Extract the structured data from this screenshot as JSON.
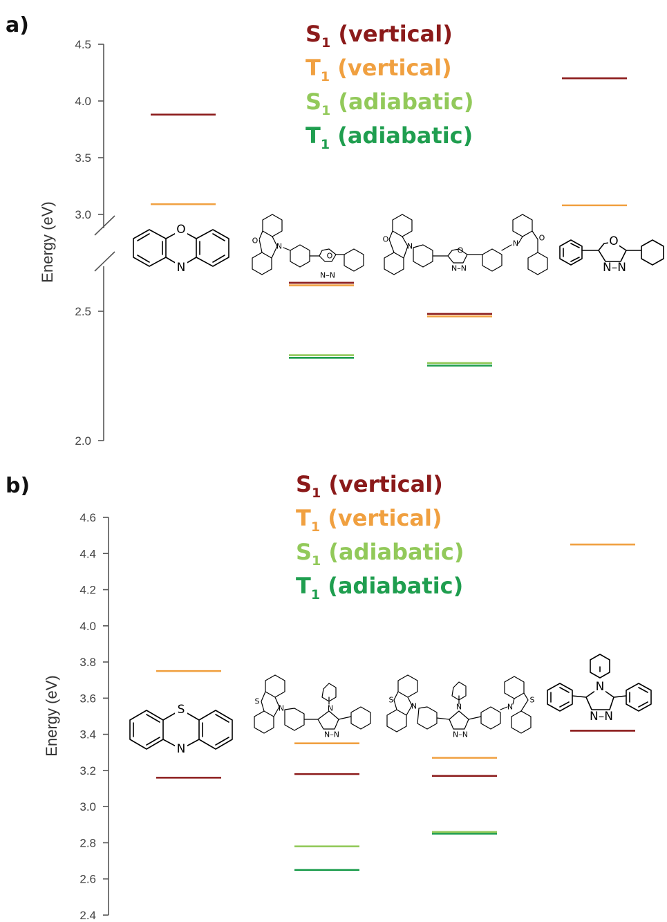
{
  "chart_data": [
    {
      "panel": "a)",
      "type": "energy-level",
      "ylabel": "Energy (eV)",
      "yticks": [
        "4.5",
        "4.0",
        "3.5",
        "3.0",
        "2.5",
        "2.0"
      ],
      "ylim": [
        2.0,
        4.5
      ],
      "axis_break": [
        2.75,
        2.95
      ],
      "legend": [
        {
          "state": "S",
          "sub": "1",
          "label": " (vertical)",
          "color": "#8b1a1a"
        },
        {
          "state": "T",
          "sub": "1",
          "label": " (vertical)",
          "color": "#f0a040"
        },
        {
          "state": "S",
          "sub": "1",
          "label": " (adiabatic)",
          "color": "#92c95a"
        },
        {
          "state": "T",
          "sub": "1",
          "label": " (adiabatic)",
          "color": "#1f9e4f"
        }
      ],
      "categories": [
        "phenoxazine",
        "phenoxazine-phenyl-oxadiazole-phenyl",
        "bis(phenoxazine-phenyl)-oxadiazole",
        "diphenyl-oxadiazole"
      ],
      "series": [
        {
          "name": "S1 (vertical)",
          "color": "#8b1a1a",
          "values": [
            3.88,
            2.61,
            2.49,
            4.2
          ]
        },
        {
          "name": "T1 (vertical)",
          "color": "#f0a040",
          "values": [
            3.09,
            2.6,
            2.48,
            3.08
          ]
        },
        {
          "name": "S1 (adiabatic)",
          "color": "#92c95a",
          "values": [
            null,
            2.33,
            2.3,
            null
          ]
        },
        {
          "name": "T1 (adiabatic)",
          "color": "#1f9e4f",
          "values": [
            null,
            2.32,
            2.29,
            null
          ]
        }
      ]
    },
    {
      "panel": "b)",
      "type": "energy-level",
      "ylabel": "Energy (eV)",
      "yticks": [
        "4.6",
        "4.4",
        "4.2",
        "4.0",
        "3.8",
        "3.6",
        "3.4",
        "3.2",
        "3.0",
        "2.8",
        "2.6",
        "2.4"
      ],
      "ylim": [
        2.4,
        4.6
      ],
      "legend": [
        {
          "state": "S",
          "sub": "1",
          "label": " (vertical)",
          "color": "#8b1a1a"
        },
        {
          "state": "T",
          "sub": "1",
          "label": " (vertical)",
          "color": "#f0a040"
        },
        {
          "state": "S",
          "sub": "1",
          "label": " (adiabatic)",
          "color": "#92c95a"
        },
        {
          "state": "T",
          "sub": "1",
          "label": " (adiabatic)",
          "color": "#1f9e4f"
        }
      ],
      "categories": [
        "phenothiazine",
        "phenothiazine-phenyl-triazole-phenyl",
        "bis(phenothiazine-phenyl)-triazole",
        "triphenyl-triazole"
      ],
      "series": [
        {
          "name": "S1 (vertical)",
          "color": "#8b1a1a",
          "values": [
            3.16,
            3.18,
            3.17,
            3.42
          ]
        },
        {
          "name": "T1 (vertical)",
          "color": "#f0a040",
          "values": [
            3.75,
            3.35,
            3.27,
            4.45
          ]
        },
        {
          "name": "S1 (adiabatic)",
          "color": "#92c95a",
          "values": [
            null,
            2.78,
            2.86,
            null
          ]
        },
        {
          "name": "T1 (adiabatic)",
          "color": "#1f9e4f",
          "values": [
            null,
            2.65,
            2.85,
            null
          ]
        }
      ]
    }
  ],
  "atoms": {
    "O": "O",
    "N": "N",
    "S": "S",
    "NN": "N–N"
  }
}
